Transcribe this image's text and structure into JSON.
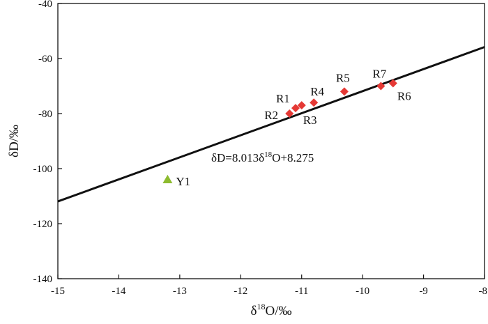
{
  "chart_data": {
    "type": "scatter",
    "xlabel": "δ18O/‰",
    "xlabel_parts": {
      "sym": "δ",
      "sup": "18",
      "rest": "O/‰"
    },
    "ylabel": "δD/‰",
    "xlim": [
      -15,
      -8
    ],
    "ylim": [
      -140,
      -40
    ],
    "xticks": [
      -15,
      -14,
      -13,
      -12,
      -11,
      -10,
      -9,
      -8
    ],
    "yticks": [
      -140,
      -120,
      -100,
      -80,
      -60,
      -40
    ],
    "grid": false,
    "equation": {
      "text": "δD=8.013δ18O+8.275",
      "parts": {
        "a": "δD=8.013δ",
        "sup": "18",
        "b": "O+8.275"
      },
      "slope": 8.013,
      "intercept": 8.275
    },
    "colors": {
      "series_r": "#e53935",
      "series_y": "#8dbb2f",
      "line": "#111111"
    },
    "series": [
      {
        "marker": "diamond",
        "color": "#e53935",
        "points": [
          {
            "label": "R1",
            "x": -11.1,
            "y": -78
          },
          {
            "label": "R2",
            "x": -11.2,
            "y": -80
          },
          {
            "label": "R3",
            "x": -11.0,
            "y": -77
          },
          {
            "label": "R4",
            "x": -10.8,
            "y": -76
          },
          {
            "label": "R5",
            "x": -10.3,
            "y": -72
          },
          {
            "label": "R6",
            "x": -9.5,
            "y": -69
          },
          {
            "label": "R7",
            "x": -9.7,
            "y": -70
          }
        ]
      },
      {
        "marker": "triangle",
        "color": "#8dbb2f",
        "points": [
          {
            "label": "Y1",
            "x": -13.2,
            "y": -104
          }
        ]
      }
    ]
  }
}
